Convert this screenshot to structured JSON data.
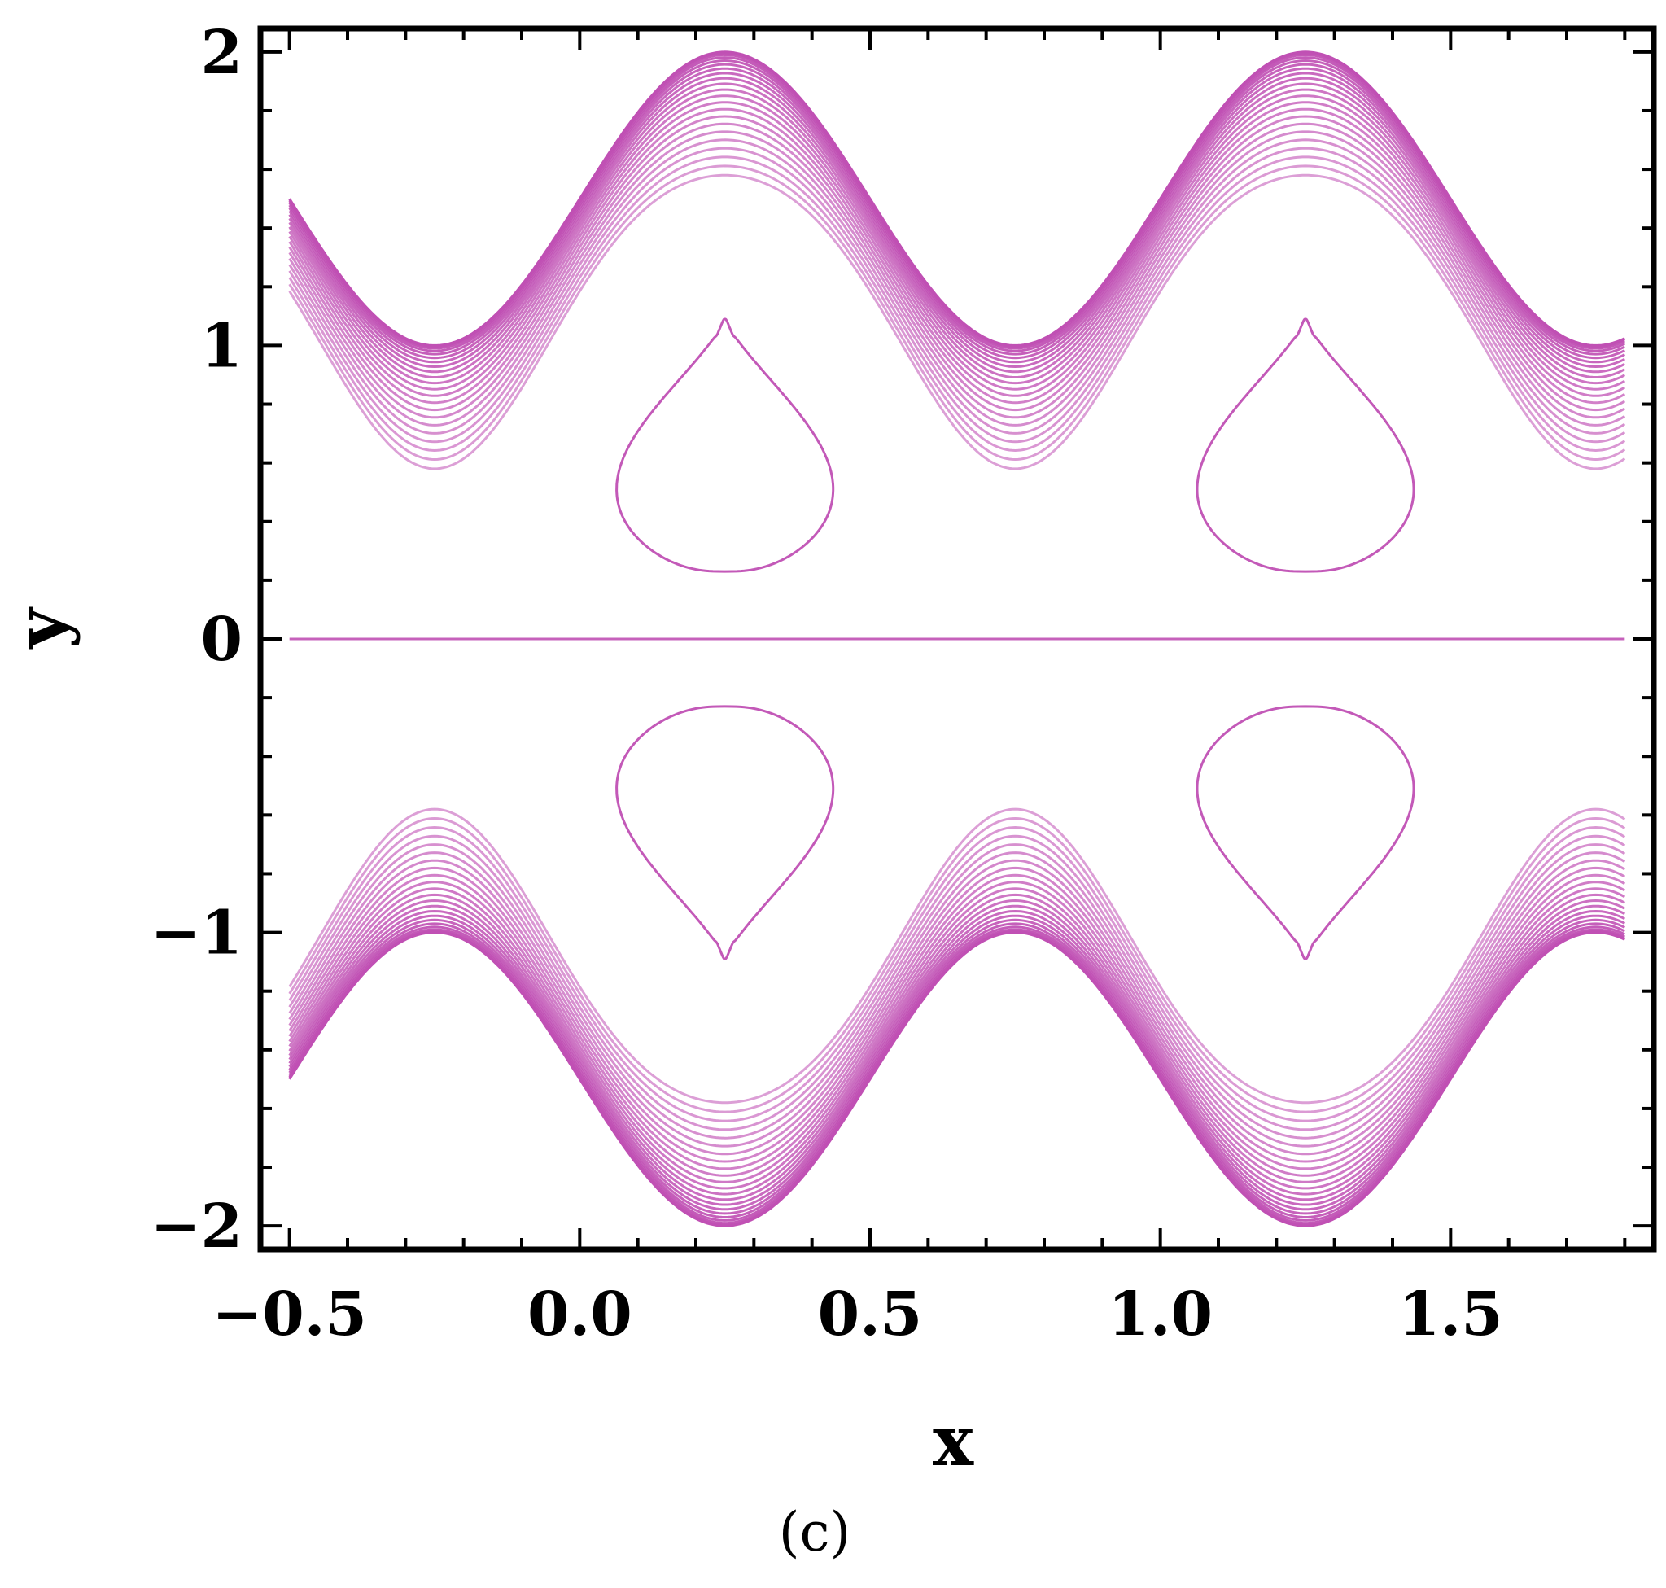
{
  "chart_data": {
    "type": "contour",
    "xlabel": "x",
    "ylabel": "y",
    "caption": "(c)",
    "xlim": [
      -0.55,
      1.85
    ],
    "ylim": [
      -2.08,
      2.08
    ],
    "x_ticks": [
      -0.5,
      0.0,
      0.5,
      1.0,
      1.5
    ],
    "x_tick_labels": [
      "−0.5",
      "0.0",
      "0.5",
      "1.0",
      "1.5"
    ],
    "y_ticks": [
      -2,
      -1,
      0,
      1,
      2
    ],
    "y_tick_labels": [
      "−2",
      "−1",
      "0",
      "1",
      "2"
    ],
    "grid": false,
    "line_color": "#c050b4",
    "wall_upper": "y = 1.5 + 0.5*sin(2*pi*x)",
    "wall_lower": "y = -(1.5 + 0.5*sin(2*pi*x))",
    "wall_band_contours": 22,
    "wall_band_min_offset": 0.42,
    "wall_band_max_offset": 0.0,
    "centerline_y": 0,
    "trapped_boluses": [
      {
        "x_center": 0.25,
        "y_top": 1.09,
        "y_bottom": 0.23
      },
      {
        "x_center": 1.25,
        "y_top": 1.09,
        "y_bottom": 0.23
      },
      {
        "x_center": 0.25,
        "y_top": -0.23,
        "y_bottom": -1.09
      },
      {
        "x_center": 1.25,
        "y_top": -0.23,
        "y_bottom": -1.09
      }
    ]
  }
}
